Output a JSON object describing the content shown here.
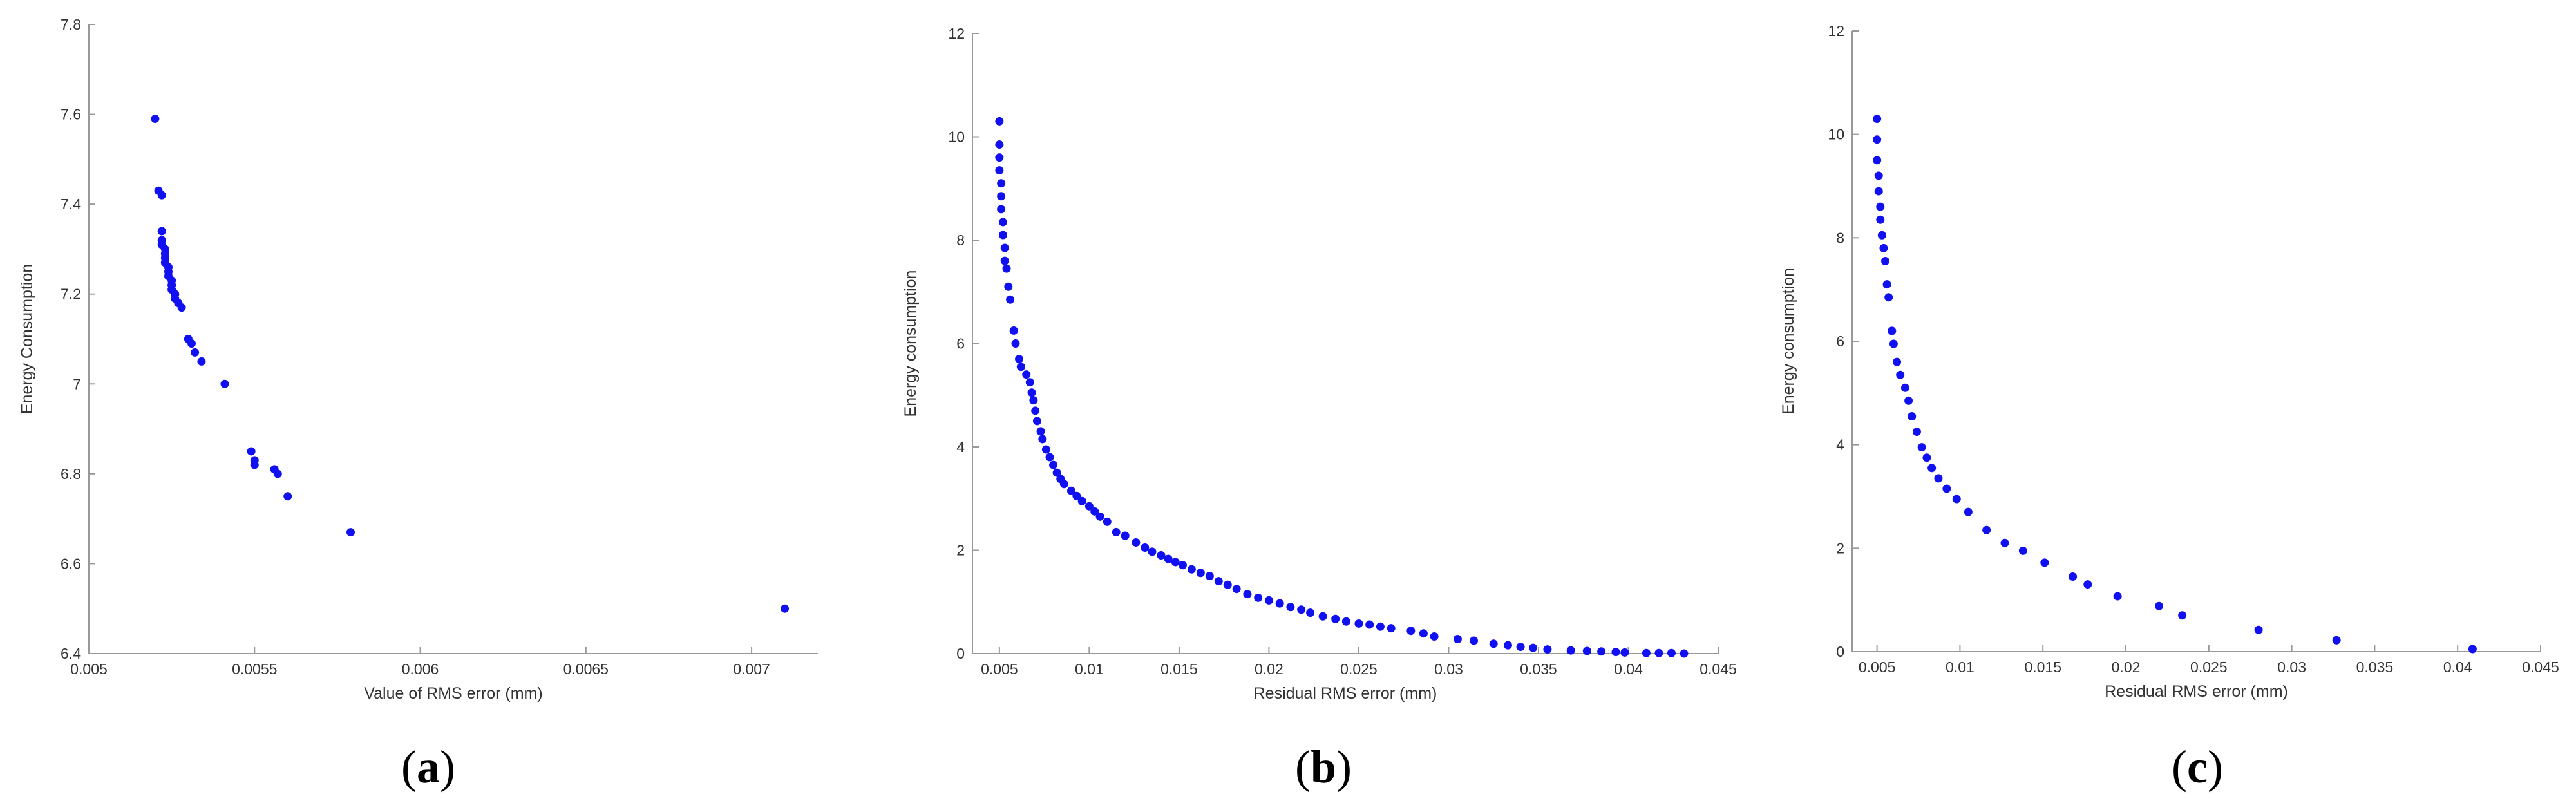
{
  "chart_data": [
    {
      "type": "scatter",
      "panel_label": "a",
      "xlabel": "Value of RMS error (mm)",
      "ylabel": "Energy Consumption",
      "xlim": [
        0.005,
        0.0072
      ],
      "ylim": [
        6.4,
        7.8
      ],
      "x_ticks": [
        "0.005",
        "0.0055",
        "0.006",
        "0.0065",
        "0.007"
      ],
      "y_ticks": [
        "6.4",
        "6.6",
        "6.8",
        "7",
        "7.2",
        "7.4",
        "7.6",
        "7.8"
      ],
      "grid": false,
      "marker_color": "#1010f0",
      "points": [
        [
          0.0052,
          7.59
        ],
        [
          0.00521,
          7.43
        ],
        [
          0.00522,
          7.42
        ],
        [
          0.00522,
          7.34
        ],
        [
          0.00522,
          7.32
        ],
        [
          0.00522,
          7.31
        ],
        [
          0.00523,
          7.3
        ],
        [
          0.00523,
          7.29
        ],
        [
          0.00523,
          7.28
        ],
        [
          0.00523,
          7.27
        ],
        [
          0.00524,
          7.26
        ],
        [
          0.00524,
          7.25
        ],
        [
          0.00524,
          7.24
        ],
        [
          0.00525,
          7.23
        ],
        [
          0.00525,
          7.22
        ],
        [
          0.00525,
          7.21
        ],
        [
          0.00526,
          7.2
        ],
        [
          0.00526,
          7.19
        ],
        [
          0.00527,
          7.18
        ],
        [
          0.00528,
          7.17
        ],
        [
          0.0053,
          7.1
        ],
        [
          0.00531,
          7.09
        ],
        [
          0.00532,
          7.07
        ],
        [
          0.00534,
          7.05
        ],
        [
          0.00541,
          7.0
        ],
        [
          0.00549,
          6.85
        ],
        [
          0.0055,
          6.83
        ],
        [
          0.0055,
          6.82
        ],
        [
          0.00556,
          6.81
        ],
        [
          0.00557,
          6.8
        ],
        [
          0.0056,
          6.75
        ],
        [
          0.00579,
          6.67
        ],
        [
          0.0071,
          6.5
        ]
      ]
    },
    {
      "type": "scatter",
      "panel_label": "b",
      "xlabel": "Residual RMS error (mm)",
      "ylabel": "Energy consumption",
      "xlim": [
        0.0035,
        0.045
      ],
      "ylim": [
        0,
        12
      ],
      "x_ticks": [
        "0.005",
        "0.01",
        "0.015",
        "0.02",
        "0.025",
        "0.03",
        "0.035",
        "0.04",
        "0.045"
      ],
      "y_ticks": [
        "0",
        "2",
        "4",
        "6",
        "8",
        "10",
        "12"
      ],
      "grid": false,
      "marker_color": "#1010f0",
      "points": [
        [
          0.005,
          10.3
        ],
        [
          0.005,
          9.85
        ],
        [
          0.005,
          9.6
        ],
        [
          0.005,
          9.35
        ],
        [
          0.0051,
          9.1
        ],
        [
          0.0051,
          8.85
        ],
        [
          0.0051,
          8.6
        ],
        [
          0.0052,
          8.35
        ],
        [
          0.0052,
          8.1
        ],
        [
          0.0053,
          7.85
        ],
        [
          0.0053,
          7.6
        ],
        [
          0.0054,
          7.45
        ],
        [
          0.0055,
          7.1
        ],
        [
          0.0056,
          6.85
        ],
        [
          0.0058,
          6.25
        ],
        [
          0.0059,
          6.0
        ],
        [
          0.0061,
          5.7
        ],
        [
          0.0062,
          5.55
        ],
        [
          0.0065,
          5.4
        ],
        [
          0.0067,
          5.25
        ],
        [
          0.0068,
          5.05
        ],
        [
          0.0069,
          4.9
        ],
        [
          0.007,
          4.7
        ],
        [
          0.0071,
          4.5
        ],
        [
          0.0073,
          4.3
        ],
        [
          0.0074,
          4.15
        ],
        [
          0.0076,
          3.95
        ],
        [
          0.0078,
          3.8
        ],
        [
          0.008,
          3.65
        ],
        [
          0.0082,
          3.5
        ],
        [
          0.0084,
          3.38
        ],
        [
          0.0086,
          3.28
        ],
        [
          0.009,
          3.15
        ],
        [
          0.0093,
          3.05
        ],
        [
          0.0096,
          2.95
        ],
        [
          0.01,
          2.85
        ],
        [
          0.0103,
          2.75
        ],
        [
          0.0106,
          2.65
        ],
        [
          0.011,
          2.55
        ],
        [
          0.0115,
          2.35
        ],
        [
          0.012,
          2.28
        ],
        [
          0.0126,
          2.15
        ],
        [
          0.0131,
          2.05
        ],
        [
          0.0135,
          1.97
        ],
        [
          0.014,
          1.9
        ],
        [
          0.0144,
          1.83
        ],
        [
          0.0148,
          1.77
        ],
        [
          0.0152,
          1.71
        ],
        [
          0.0157,
          1.63
        ],
        [
          0.0162,
          1.56
        ],
        [
          0.0167,
          1.5
        ],
        [
          0.0172,
          1.4
        ],
        [
          0.0177,
          1.33
        ],
        [
          0.0182,
          1.25
        ],
        [
          0.0188,
          1.15
        ],
        [
          0.0194,
          1.08
        ],
        [
          0.02,
          1.03
        ],
        [
          0.0206,
          0.97
        ],
        [
          0.0212,
          0.9
        ],
        [
          0.0218,
          0.85
        ],
        [
          0.0223,
          0.79
        ],
        [
          0.023,
          0.72
        ],
        [
          0.0237,
          0.67
        ],
        [
          0.0243,
          0.62
        ],
        [
          0.025,
          0.58
        ],
        [
          0.0256,
          0.56
        ],
        [
          0.0262,
          0.52
        ],
        [
          0.0268,
          0.49
        ],
        [
          0.0279,
          0.44
        ],
        [
          0.0286,
          0.39
        ],
        [
          0.0292,
          0.33
        ],
        [
          0.0305,
          0.28
        ],
        [
          0.0314,
          0.25
        ],
        [
          0.0325,
          0.19
        ],
        [
          0.0333,
          0.16
        ],
        [
          0.034,
          0.13
        ],
        [
          0.0347,
          0.11
        ],
        [
          0.0355,
          0.08
        ],
        [
          0.0368,
          0.06
        ],
        [
          0.0377,
          0.05
        ],
        [
          0.0385,
          0.04
        ],
        [
          0.0393,
          0.03
        ],
        [
          0.0398,
          0.02
        ],
        [
          0.041,
          0.01
        ],
        [
          0.0417,
          0.01
        ],
        [
          0.0424,
          0.01
        ],
        [
          0.0431,
          0.0
        ]
      ]
    },
    {
      "type": "scatter",
      "panel_label": "c",
      "xlabel": "Residual RMS error (mm)",
      "ylabel": "Energy consumption",
      "xlim": [
        0.0035,
        0.045
      ],
      "ylim": [
        0,
        12
      ],
      "x_ticks": [
        "0.005",
        "0.01",
        "0.015",
        "0.02",
        "0.025",
        "0.03",
        "0.035",
        "0.04",
        "0.045"
      ],
      "y_ticks": [
        "0",
        "2",
        "4",
        "6",
        "8",
        "10",
        "12"
      ],
      "grid": false,
      "marker_color": "#1010f0",
      "points": [
        [
          0.005,
          10.3
        ],
        [
          0.005,
          9.9
        ],
        [
          0.005,
          9.5
        ],
        [
          0.0051,
          9.2
        ],
        [
          0.0051,
          8.9
        ],
        [
          0.0052,
          8.6
        ],
        [
          0.0052,
          8.35
        ],
        [
          0.0053,
          8.05
        ],
        [
          0.0054,
          7.8
        ],
        [
          0.0055,
          7.55
        ],
        [
          0.0056,
          7.1
        ],
        [
          0.0057,
          6.85
        ],
        [
          0.0059,
          6.2
        ],
        [
          0.006,
          5.95
        ],
        [
          0.0062,
          5.6
        ],
        [
          0.0064,
          5.35
        ],
        [
          0.0067,
          5.1
        ],
        [
          0.0069,
          4.85
        ],
        [
          0.0071,
          4.55
        ],
        [
          0.0074,
          4.25
        ],
        [
          0.0077,
          3.95
        ],
        [
          0.008,
          3.75
        ],
        [
          0.0083,
          3.55
        ],
        [
          0.0087,
          3.35
        ],
        [
          0.0092,
          3.15
        ],
        [
          0.0098,
          2.95
        ],
        [
          0.0105,
          2.7
        ],
        [
          0.0116,
          2.35
        ],
        [
          0.0127,
          2.1
        ],
        [
          0.0138,
          1.95
        ],
        [
          0.0151,
          1.72
        ],
        [
          0.0168,
          1.45
        ],
        [
          0.0177,
          1.3
        ],
        [
          0.0195,
          1.07
        ],
        [
          0.022,
          0.88
        ],
        [
          0.0234,
          0.7
        ],
        [
          0.028,
          0.42
        ],
        [
          0.0327,
          0.22
        ],
        [
          0.0409,
          0.05
        ]
      ]
    }
  ]
}
